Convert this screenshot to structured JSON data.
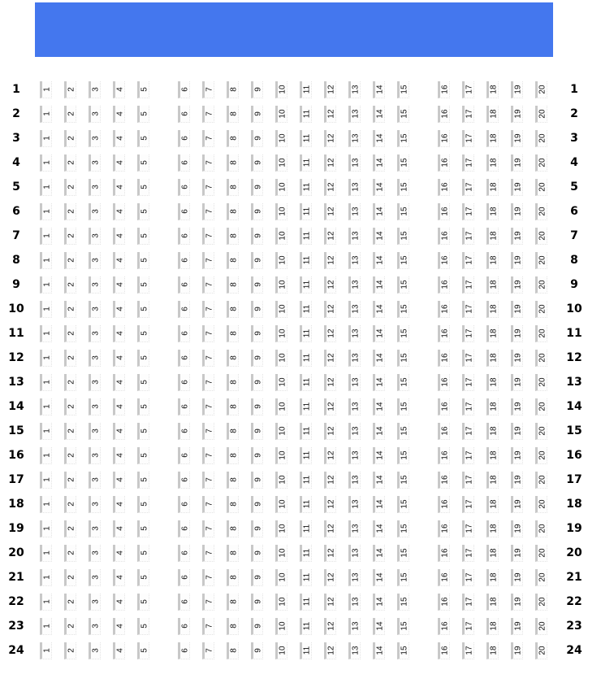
{
  "screen": {
    "color": "#4477ee"
  },
  "rows": [
    "1",
    "2",
    "3",
    "4",
    "5",
    "6",
    "7",
    "8",
    "9",
    "10",
    "11",
    "12",
    "13",
    "14",
    "15",
    "16",
    "17",
    "18",
    "19",
    "20",
    "21",
    "22",
    "23",
    "24"
  ],
  "seats": [
    "1",
    "2",
    "3",
    "4",
    "5",
    "6",
    "7",
    "8",
    "9",
    "10",
    "11",
    "12",
    "13",
    "14",
    "15",
    "16",
    "17",
    "18",
    "19",
    "20"
  ],
  "aisles_after_seat": [
    "5",
    "15"
  ]
}
